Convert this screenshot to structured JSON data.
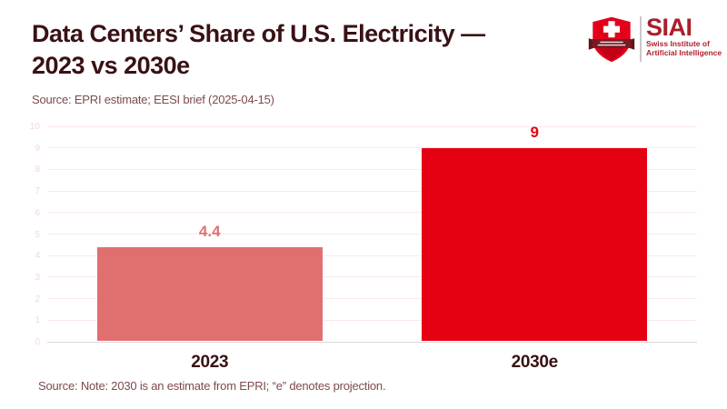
{
  "header": {
    "title_line1": "Data Centers’ Share of U.S. Electricity —",
    "title_line2": "2023 vs 2030e",
    "subtitle": "Source: EPRI estimate; EESI brief (2025-04-15)"
  },
  "logo": {
    "acronym": "SIAI",
    "name_line1": "Swiss Institute of",
    "name_line2": "Artificial Intelligence",
    "shield_icon": "swiss-shield-cross-icon",
    "brand_red": "#a91f2c",
    "shield_red": "#e3001b",
    "banner_maroon": "#7a1a22"
  },
  "chart_data": {
    "type": "bar",
    "categories": [
      "2023",
      "2030e"
    ],
    "values": [
      4.4,
      9
    ],
    "data_labels": [
      "4.4",
      "9"
    ],
    "bar_colors": [
      "#e26f70",
      "#e50012"
    ],
    "title": "Data Centers’ Share of U.S. Electricity — 2023 vs 2030e",
    "xlabel": "",
    "ylabel": "",
    "ylim": [
      0,
      10
    ],
    "yticks": [
      0,
      1,
      2,
      3,
      4,
      5,
      6,
      7,
      8,
      9,
      10
    ],
    "grid": true,
    "legend": "none",
    "gridline_color": "#fbe9e9",
    "axis_line_color": "#d8d8d8",
    "ytick_label_color": "#f6d8d8",
    "xtick_label_color": "#3a1114"
  },
  "footer": {
    "note": "Source: Note: 2030 is an estimate from EPRI; “e” denotes projection."
  },
  "colors": {
    "background": "#ffffff",
    "title_text": "#3a1114",
    "muted_text": "#7d4a4e"
  }
}
